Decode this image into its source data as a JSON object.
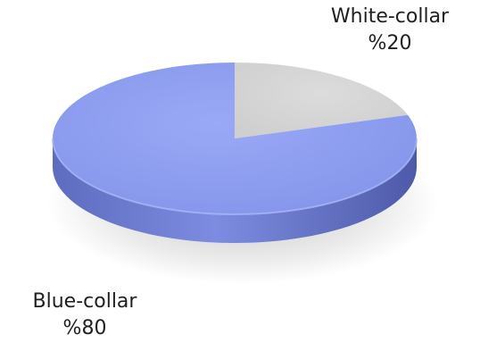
{
  "chart_data": {
    "type": "pie",
    "title": "",
    "slices": [
      {
        "label": "White-collar",
        "value": 20,
        "value_label": "%20",
        "color": "#d6d6d6"
      },
      {
        "label": "Blue-collar",
        "value": 80,
        "value_label": "%80",
        "color": "#8f9ff0"
      }
    ],
    "legend": "none",
    "style": "3d"
  }
}
